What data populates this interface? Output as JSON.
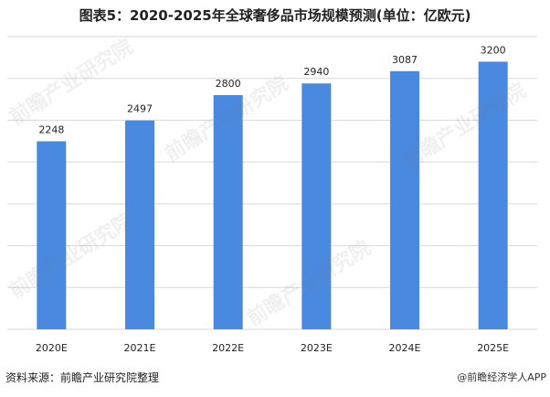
{
  "title": "图表5：2020-2025年全球奢侈品市场规模预测(单位：亿欧元)",
  "source": "资料来源：前瞻产业研究院整理",
  "brand": "@前瞻经济学人APP",
  "watermark": "前瞻产业研究院",
  "colors": {
    "bar": "#4a89e0",
    "grid": "#d9d9d9",
    "text": "#222222"
  },
  "chart_data": {
    "type": "bar",
    "title": "图表5：2020-2025年全球奢侈品市场规模预测(单位：亿欧元)",
    "categories": [
      "2020E",
      "2021E",
      "2022E",
      "2023E",
      "2024E",
      "2025E"
    ],
    "values": [
      2248,
      2497,
      2800,
      2940,
      3087,
      3200
    ],
    "ylim": [
      0,
      3500
    ],
    "xlabel": "",
    "ylabel": "",
    "grid": true,
    "legend": "none"
  }
}
